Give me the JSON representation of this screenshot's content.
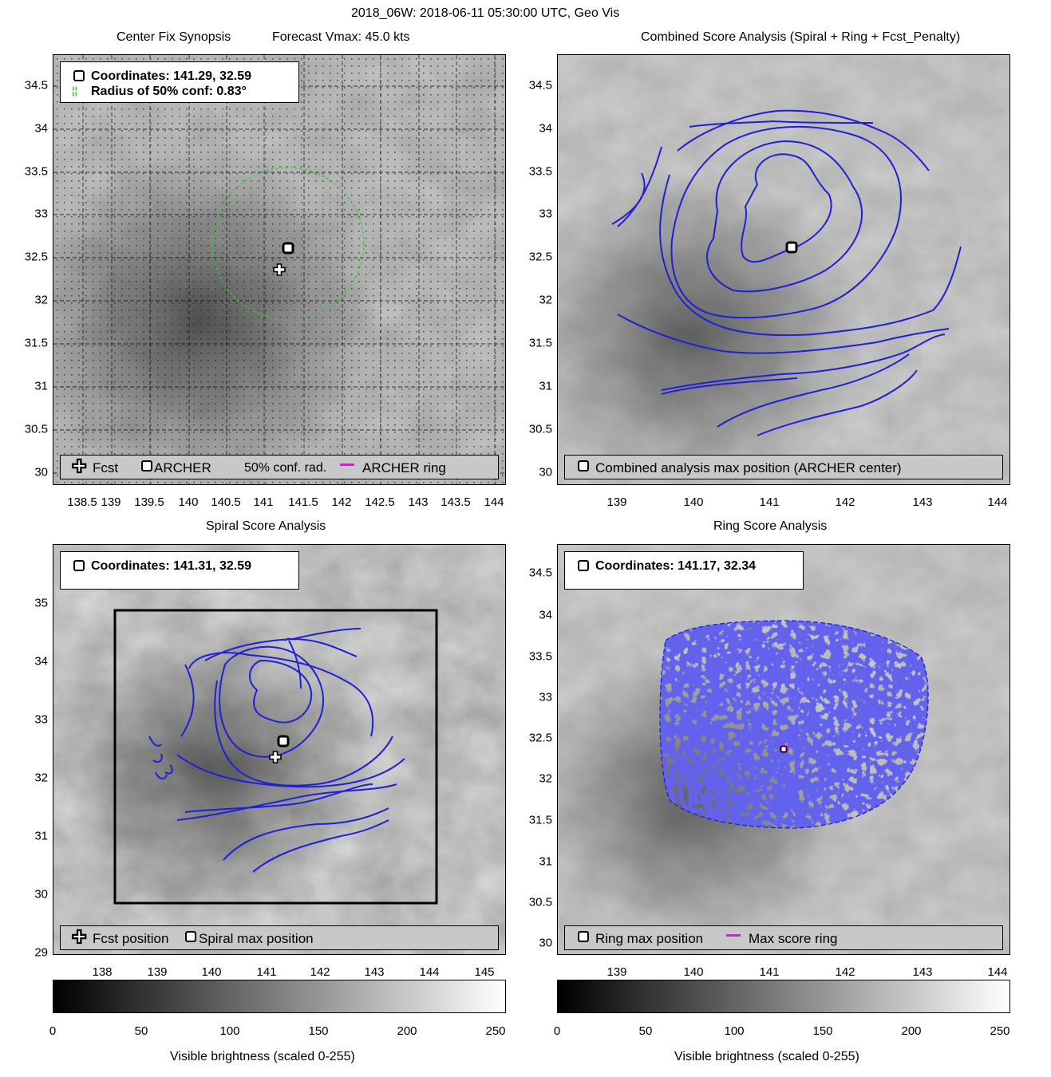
{
  "suptitle": "2018_06W: 2018-06-11 05:30:00 UTC, Geo Vis",
  "panels": {
    "tl": {
      "title_left": "Center Fix Synopsis",
      "title_right": "Forecast Vmax: 45.0 kts",
      "coord_line1": "Coordinates: 141.29, 32.59",
      "coord_line2": "Radius of 50% conf: 0.83°",
      "legend": [
        "Fcst",
        "ARCHER",
        "50% conf. rad.",
        "ARCHER ring"
      ],
      "xticks": [
        "138.5",
        "139",
        "139.5",
        "140",
        "140.5",
        "141",
        "141.5",
        "142",
        "142.5",
        "143",
        "143.5",
        "144"
      ],
      "yticks": [
        "34.5",
        "34",
        "33.5",
        "33",
        "32.5",
        "32",
        "31.5",
        "31",
        "30.5",
        "30"
      ]
    },
    "tr": {
      "title": "Combined Score Analysis (Spiral + Ring + Fcst_Penalty)",
      "legend": [
        "Combined analysis max position (ARCHER center)"
      ],
      "xticks": [
        "139",
        "140",
        "141",
        "142",
        "143",
        "144"
      ],
      "yticks": [
        "34.5",
        "34",
        "33.5",
        "33",
        "32.5",
        "32",
        "31.5",
        "31",
        "30.5",
        "30"
      ]
    },
    "bl": {
      "title": "Spiral Score Analysis",
      "coord_line1": "Coordinates: 141.31, 32.59",
      "legend": [
        "Fcst position",
        "Spiral max position"
      ],
      "xticks": [
        "138",
        "139",
        "140",
        "141",
        "142",
        "143",
        "144",
        "145"
      ],
      "yticks": [
        "35",
        "34",
        "33",
        "32",
        "31",
        "30",
        "29"
      ]
    },
    "br": {
      "title": "Ring Score Analysis",
      "coord_line1": "Coordinates: 141.17, 32.34",
      "legend": [
        "Ring max position",
        "Max score ring"
      ],
      "xticks": [
        "139",
        "140",
        "141",
        "142",
        "143",
        "144"
      ],
      "yticks": [
        "34.5",
        "34",
        "33.5",
        "33",
        "32.5",
        "32",
        "31.5",
        "31",
        "30.5",
        "30"
      ]
    }
  },
  "colorbar": {
    "label": "Visible brightness (scaled 0-255)",
    "ticks": [
      "0",
      "50",
      "100",
      "150",
      "200",
      "250"
    ]
  },
  "colors": {
    "contour": "#1f1fd6",
    "conf_circle": "#33cc33",
    "ring": "#ff00ff"
  },
  "chart_data": [
    {
      "type": "heatmap",
      "title": "Center Fix Synopsis",
      "xlim": [
        138.2,
        144.1
      ],
      "ylim": [
        29.85,
        34.85
      ],
      "archer_center": {
        "lon": 141.29,
        "lat": 32.59
      },
      "forecast_position": {
        "lon": 141.2,
        "lat": 32.35
      },
      "conf_radius_deg": 0.83,
      "forecast_vmax_kts": 45.0
    },
    {
      "type": "heatmap",
      "title": "Combined Score Analysis (Spiral + Ring + Fcst_Penalty)",
      "xlim": [
        138.3,
        144.0
      ],
      "ylim": [
        29.85,
        34.85
      ],
      "max_position": {
        "lon": 141.29,
        "lat": 32.59
      }
    },
    {
      "type": "heatmap",
      "title": "Spiral Score Analysis",
      "xlim": [
        137.0,
        145.3
      ],
      "ylim": [
        29.0,
        35.9
      ],
      "max_position": {
        "lon": 141.31,
        "lat": 32.59
      },
      "forecast_position": {
        "lon": 141.2,
        "lat": 32.35
      },
      "search_box": {
        "lon": [
          138.0,
          144.0
        ],
        "lat": [
          29.85,
          34.85
        ]
      }
    },
    {
      "type": "heatmap",
      "title": "Ring Score Analysis",
      "xlim": [
        138.3,
        144.0
      ],
      "ylim": [
        29.85,
        34.85
      ],
      "max_position": {
        "lon": 141.17,
        "lat": 32.34
      }
    }
  ]
}
